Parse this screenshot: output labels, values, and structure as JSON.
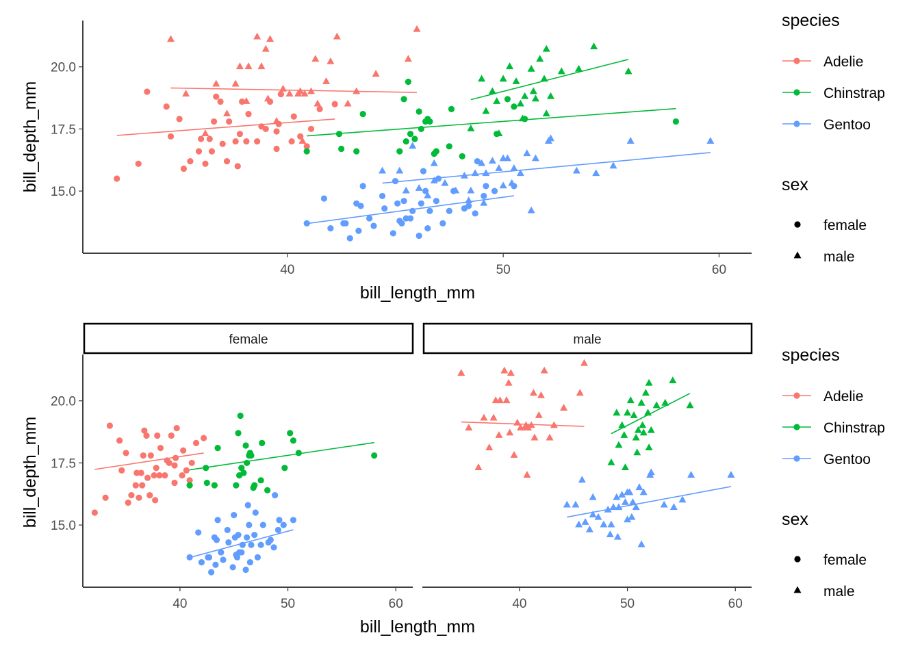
{
  "colors": {
    "Adelie": "#F8766D",
    "Chinstrap": "#00BA38",
    "Gentoo": "#619CFF"
  },
  "legend": {
    "species_title": "species",
    "species": [
      "Adelie",
      "Chinstrap",
      "Gentoo"
    ],
    "sex_title": "sex",
    "sex": [
      {
        "label": "female",
        "shape": "circle"
      },
      {
        "label": "male",
        "shape": "triangle"
      }
    ]
  },
  "chart_data": [
    {
      "type": "scatter",
      "title": "",
      "xlabel": "bill_length_mm",
      "ylabel": "bill_depth_mm",
      "xlim": [
        31,
        61
      ],
      "ylim": [
        12.8,
        21.7
      ],
      "xticks": [
        40,
        50,
        60
      ],
      "yticks": [
        15.0,
        17.5,
        20.0
      ],
      "ytick_labels": [
        "15.0",
        "17.5",
        "20.0"
      ],
      "color_by": "species",
      "shape_by": "sex",
      "grid": false,
      "legend_position": "right",
      "series": [
        {
          "species": "Adelie",
          "sex": "female",
          "points": [
            [
              32.1,
              15.5
            ],
            [
              33.1,
              16.1
            ],
            [
              33.5,
              19.0
            ],
            [
              34.4,
              18.4
            ],
            [
              34.6,
              17.2
            ],
            [
              35.0,
              17.9
            ],
            [
              35.2,
              15.9
            ],
            [
              35.5,
              16.2
            ],
            [
              35.9,
              16.6
            ],
            [
              36.0,
              17.1
            ],
            [
              36.2,
              16.1
            ],
            [
              36.4,
              17.1
            ],
            [
              36.5,
              16.6
            ],
            [
              36.6,
              17.8
            ],
            [
              36.7,
              18.8
            ],
            [
              36.9,
              18.6
            ],
            [
              37.0,
              16.9
            ],
            [
              37.3,
              17.8
            ],
            [
              37.6,
              17.0
            ],
            [
              37.7,
              16.0
            ],
            [
              37.8,
              17.3
            ],
            [
              37.9,
              18.6
            ],
            [
              38.1,
              17.0
            ],
            [
              38.2,
              18.1
            ],
            [
              38.6,
              17.0
            ],
            [
              38.8,
              17.6
            ],
            [
              39.0,
              17.5
            ],
            [
              39.2,
              18.6
            ],
            [
              39.5,
              17.4
            ],
            [
              39.6,
              17.7
            ],
            [
              39.7,
              18.9
            ],
            [
              40.2,
              17.0
            ],
            [
              40.3,
              18.0
            ],
            [
              40.6,
              17.2
            ],
            [
              40.9,
              16.8
            ],
            [
              41.1,
              17.5
            ],
            [
              41.5,
              18.3
            ],
            [
              42.2,
              18.5
            ],
            [
              39.5,
              16.7
            ],
            [
              37.2,
              16.2
            ]
          ]
        },
        {
          "species": "Adelie",
          "sex": "male",
          "points": [
            [
              34.6,
              21.1
            ],
            [
              35.3,
              18.9
            ],
            [
              36.2,
              17.3
            ],
            [
              36.7,
              19.3
            ],
            [
              37.2,
              18.1
            ],
            [
              37.6,
              19.3
            ],
            [
              37.8,
              20.0
            ],
            [
              38.2,
              20.0
            ],
            [
              38.6,
              21.2
            ],
            [
              38.8,
              20.0
            ],
            [
              39.1,
              18.7
            ],
            [
              39.2,
              21.1
            ],
            [
              39.5,
              17.8
            ],
            [
              39.8,
              19.1
            ],
            [
              40.1,
              18.9
            ],
            [
              40.5,
              18.9
            ],
            [
              40.6,
              19.0
            ],
            [
              40.8,
              18.9
            ],
            [
              41.1,
              19.0
            ],
            [
              41.4,
              18.5
            ],
            [
              41.8,
              19.4
            ],
            [
              42.0,
              20.2
            ],
            [
              42.3,
              21.2
            ],
            [
              42.8,
              18.5
            ],
            [
              43.2,
              19.0
            ],
            [
              44.1,
              19.7
            ],
            [
              45.6,
              20.3
            ],
            [
              46.0,
              21.5
            ],
            [
              40.7,
              17.0
            ],
            [
              41.3,
              20.3
            ],
            [
              39.0,
              20.7
            ],
            [
              38.1,
              18.6
            ]
          ]
        },
        {
          "species": "Chinstrap",
          "sex": "female",
          "points": [
            [
              40.9,
              16.6
            ],
            [
              42.4,
              17.3
            ],
            [
              42.5,
              16.7
            ],
            [
              43.2,
              16.6
            ],
            [
              43.5,
              18.1
            ],
            [
              45.2,
              16.6
            ],
            [
              45.4,
              18.7
            ],
            [
              45.5,
              17.0
            ],
            [
              45.6,
              19.4
            ],
            [
              45.7,
              17.3
            ],
            [
              45.9,
              17.1
            ],
            [
              46.1,
              18.2
            ],
            [
              46.2,
              17.5
            ],
            [
              46.4,
              17.8
            ],
            [
              46.5,
              17.9
            ],
            [
              46.6,
              17.8
            ],
            [
              46.8,
              16.5
            ],
            [
              46.9,
              16.6
            ],
            [
              47.5,
              16.8
            ],
            [
              47.6,
              18.3
            ],
            [
              48.1,
              16.4
            ],
            [
              49.7,
              17.3
            ],
            [
              50.2,
              18.7
            ],
            [
              50.5,
              18.4
            ],
            [
              51.0,
              17.9
            ],
            [
              58.0,
              17.8
            ]
          ]
        },
        {
          "species": "Chinstrap",
          "sex": "male",
          "points": [
            [
              48.5,
              17.5
            ],
            [
              49.0,
              19.5
            ],
            [
              49.5,
              19.0
            ],
            [
              49.7,
              18.6
            ],
            [
              50.0,
              19.5
            ],
            [
              50.3,
              20.0
            ],
            [
              50.6,
              19.4
            ],
            [
              50.8,
              18.5
            ],
            [
              51.0,
              18.8
            ],
            [
              51.3,
              19.9
            ],
            [
              51.4,
              19.0
            ],
            [
              51.5,
              18.7
            ],
            [
              51.7,
              20.3
            ],
            [
              51.9,
              19.5
            ],
            [
              52.0,
              18.1
            ],
            [
              52.2,
              18.8
            ],
            [
              52.7,
              19.8
            ],
            [
              53.5,
              19.9
            ],
            [
              54.2,
              20.8
            ],
            [
              55.8,
              19.8
            ],
            [
              49.8,
              17.3
            ],
            [
              50.9,
              17.9
            ],
            [
              52.0,
              20.7
            ],
            [
              49.2,
              18.2
            ]
          ]
        },
        {
          "species": "Gentoo",
          "sex": "female",
          "points": [
            [
              40.9,
              13.7
            ],
            [
              41.7,
              14.7
            ],
            [
              42.0,
              13.5
            ],
            [
              42.6,
              13.7
            ],
            [
              42.7,
              13.7
            ],
            [
              42.9,
              13.1
            ],
            [
              43.2,
              14.5
            ],
            [
              43.3,
              13.4
            ],
            [
              43.4,
              14.4
            ],
            [
              43.5,
              15.2
            ],
            [
              43.8,
              13.9
            ],
            [
              44.0,
              13.6
            ],
            [
              44.4,
              14.8
            ],
            [
              44.9,
              13.3
            ],
            [
              45.1,
              14.5
            ],
            [
              45.2,
              13.8
            ],
            [
              45.3,
              13.7
            ],
            [
              45.4,
              14.6
            ],
            [
              45.5,
              13.9
            ],
            [
              45.7,
              13.9
            ],
            [
              45.8,
              14.2
            ],
            [
              46.1,
              13.2
            ],
            [
              46.2,
              14.5
            ],
            [
              46.4,
              15.0
            ],
            [
              46.5,
              13.5
            ],
            [
              46.6,
              14.2
            ],
            [
              46.9,
              14.6
            ],
            [
              47.2,
              13.7
            ],
            [
              47.5,
              14.2
            ],
            [
              47.7,
              15.0
            ],
            [
              48.2,
              14.3
            ],
            [
              48.4,
              14.4
            ],
            [
              48.7,
              14.1
            ],
            [
              49.1,
              14.8
            ],
            [
              49.2,
              15.2
            ],
            [
              49.6,
              15.0
            ],
            [
              50.5,
              15.2
            ],
            [
              47.0,
              15.5
            ],
            [
              45.0,
              15.4
            ],
            [
              44.5,
              14.3
            ],
            [
              48.8,
              16.2
            ],
            [
              46.3,
              15.8
            ]
          ]
        },
        {
          "species": "Gentoo",
          "sex": "male",
          "points": [
            [
              44.4,
              15.8
            ],
            [
              45.2,
              15.8
            ],
            [
              45.5,
              15.0
            ],
            [
              45.8,
              16.8
            ],
            [
              46.1,
              15.1
            ],
            [
              46.5,
              14.8
            ],
            [
              46.8,
              15.4
            ],
            [
              47.3,
              15.3
            ],
            [
              47.8,
              15.0
            ],
            [
              48.2,
              15.6
            ],
            [
              48.5,
              15.0
            ],
            [
              48.7,
              15.7
            ],
            [
              49.0,
              16.1
            ],
            [
              49.2,
              15.7
            ],
            [
              49.5,
              16.2
            ],
            [
              49.8,
              15.9
            ],
            [
              50.0,
              16.3
            ],
            [
              50.2,
              16.3
            ],
            [
              50.4,
              15.3
            ],
            [
              50.5,
              15.9
            ],
            [
              50.8,
              15.7
            ],
            [
              51.1,
              16.5
            ],
            [
              51.5,
              16.3
            ],
            [
              52.1,
              17.0
            ],
            [
              52.2,
              17.1
            ],
            [
              53.4,
              15.8
            ],
            [
              54.3,
              15.7
            ],
            [
              55.1,
              16.0
            ],
            [
              55.9,
              17.0
            ],
            [
              59.6,
              17.0
            ],
            [
              48.4,
              14.6
            ],
            [
              49.1,
              14.5
            ],
            [
              51.3,
              14.2
            ],
            [
              50.0,
              15.2
            ],
            [
              46.8,
              16.1
            ]
          ]
        }
      ],
      "fits": [
        {
          "species": "Adelie",
          "sex": "female",
          "x": [
            32.1,
            42.2
          ],
          "y": [
            17.24,
            17.9
          ]
        },
        {
          "species": "Adelie",
          "sex": "male",
          "x": [
            34.6,
            46.0
          ],
          "y": [
            19.15,
            18.97
          ]
        },
        {
          "species": "Chinstrap",
          "sex": "female",
          "x": [
            40.9,
            58.0
          ],
          "y": [
            17.22,
            18.32
          ]
        },
        {
          "species": "Chinstrap",
          "sex": "male",
          "x": [
            48.5,
            55.8
          ],
          "y": [
            18.68,
            20.3
          ]
        },
        {
          "species": "Gentoo",
          "sex": "female",
          "x": [
            40.9,
            50.5
          ],
          "y": [
            13.69,
            14.81
          ]
        },
        {
          "species": "Gentoo",
          "sex": "male",
          "x": [
            44.4,
            59.6
          ],
          "y": [
            15.32,
            16.55
          ]
        }
      ]
    },
    {
      "type": "scatter",
      "title": "",
      "xlabel": "bill_length_mm",
      "ylabel": "bill_depth_mm",
      "facet_by": "sex",
      "facets": [
        "female",
        "male"
      ],
      "xlim": [
        31,
        61
      ],
      "ylim": [
        12.8,
        21.7
      ],
      "xticks": [
        40,
        50,
        60
      ],
      "yticks": [
        15.0,
        17.5,
        20.0
      ],
      "ytick_labels": [
        "15.0",
        "17.5",
        "20.0"
      ],
      "color_by": "species",
      "grid": false,
      "legend_position": "right",
      "note": "same data points as the upper chart, split into panels by sex"
    }
  ]
}
